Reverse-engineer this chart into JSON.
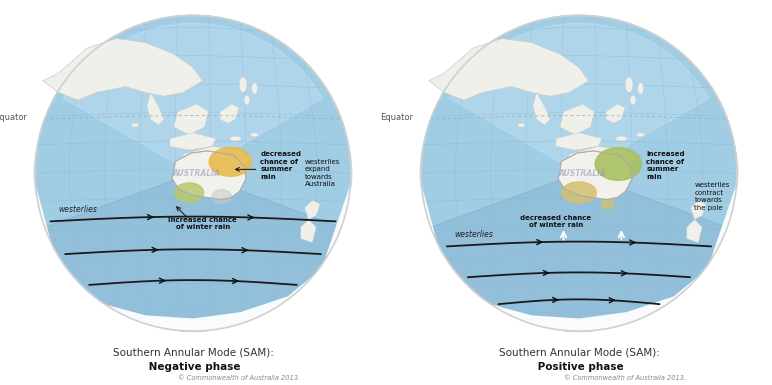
{
  "bg_color": "#ffffff",
  "ocean_color": "#a8d0e8",
  "ocean_dark": "#88b8d8",
  "land_color": "#f0f0ea",
  "land_edge": "#cccccc",
  "highlight_neg_north": "#e8b848",
  "highlight_neg_south": "#b8c870",
  "highlight_pos_north": "#a8c060",
  "highlight_pos_south": "#d4c070",
  "westerlies_color": "#1a1a1a",
  "equator_label": "Equator",
  "australia_label": "AUSTRALIA",
  "neg_title_normal": "Southern Annular Mode (SAM):",
  "neg_title_bold": " Negative phase",
  "pos_title_normal": "Southern Annular Mode (SAM):",
  "pos_title_bold": " Positive phase",
  "copyright": "© Commonwealth of Australia 2013.",
  "neg_ann1": "decreased\nchance of\nsummer\nrain",
  "neg_ann2": "westerlies\nexpand\ntowards\nAustralia",
  "neg_ann3": "increased chance\nof winter rain",
  "neg_westerlies": "westerlies",
  "pos_ann1": "increased\nchance of\nsummer\nrain",
  "pos_ann2": "westerlies\ncontract\ntowards\nthe pole",
  "pos_ann3": "decreased chance\nof winter rain",
  "pos_westerlies": "westerlies"
}
